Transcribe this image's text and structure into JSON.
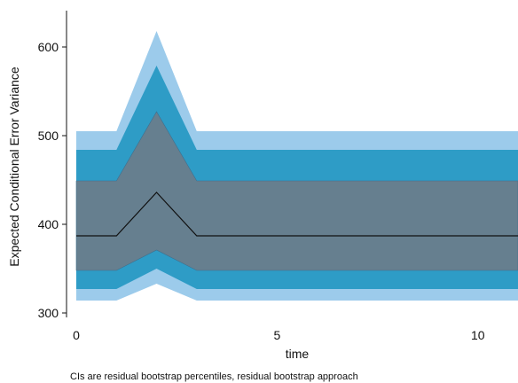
{
  "chart_data": {
    "type": "area",
    "title": "",
    "xlabel": "time",
    "ylabel": "Expected Conditional Error Variance",
    "caption": "CIs are residual bootstrap percentiles, residual bootstrap approach",
    "xlim": [
      0,
      11
    ],
    "ylim": [
      300,
      630
    ],
    "x_ticks": [
      0,
      5,
      10
    ],
    "y_ticks": [
      300,
      400,
      500,
      600
    ],
    "grid": false,
    "x": [
      0,
      1,
      2,
      3,
      4,
      5,
      6,
      7,
      8,
      9,
      10,
      11
    ],
    "median": {
      "name": "",
      "values": [
        387,
        387,
        436,
        387,
        387,
        387,
        387,
        387,
        387,
        387,
        387,
        387
      ],
      "color": "#111111"
    },
    "bands": [
      {
        "lower": [
          314,
          314,
          333,
          314,
          314,
          314,
          314,
          314,
          314,
          314,
          314,
          314
        ],
        "upper": [
          505,
          505,
          618,
          505,
          505,
          505,
          505,
          505,
          505,
          505,
          505,
          505
        ],
        "color": "#9ccbeb"
      },
      {
        "lower": [
          327,
          327,
          350,
          327,
          327,
          327,
          327,
          327,
          327,
          327,
          327,
          327
        ],
        "upper": [
          484,
          484,
          579,
          484,
          484,
          484,
          484,
          484,
          484,
          484,
          484,
          484
        ],
        "color": "#2e9cc6"
      },
      {
        "lower": [
          348,
          348,
          371,
          348,
          348,
          348,
          348,
          348,
          348,
          348,
          348,
          348
        ],
        "upper": [
          449,
          449,
          527,
          449,
          449,
          449,
          449,
          449,
          449,
          449,
          449,
          449
        ],
        "color": "#667f8f"
      }
    ]
  }
}
